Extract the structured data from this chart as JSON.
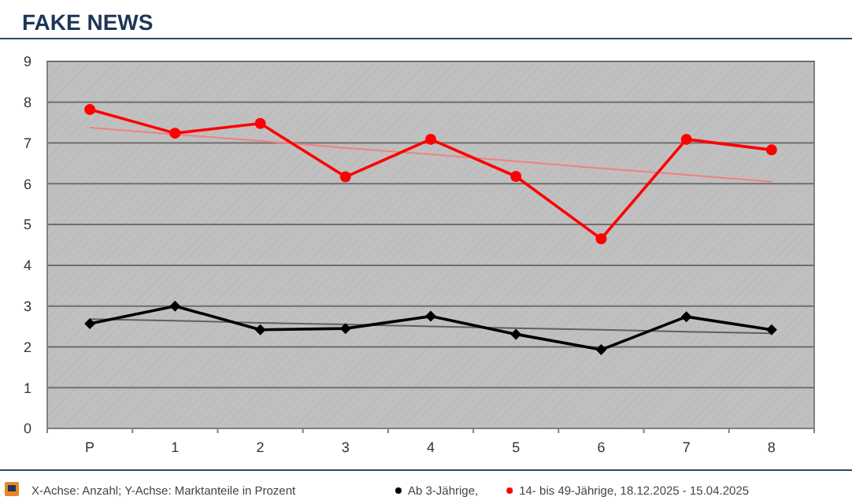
{
  "chart_data": {
    "type": "line",
    "title": "FAKE NEWS",
    "annotations": [
      "X-Achse: Anzahl; Y-Achse: Marktanteile in Prozent"
    ],
    "categories": [
      "P",
      "1",
      "2",
      "3",
      "4",
      "5",
      "6",
      "7",
      "8"
    ],
    "series": [
      {
        "name": "Ab 3-Jährige,",
        "color": "#000000",
        "marker": "diamond",
        "values": [
          2.57,
          3.0,
          2.42,
          2.45,
          2.75,
          2.31,
          1.93,
          2.74,
          2.42
        ]
      },
      {
        "name": "14- bis 49-Jährige, 18.12.2025 - 15.04.2025",
        "color": "#ff0000",
        "marker": "circle",
        "values": [
          7.82,
          7.24,
          7.48,
          6.17,
          7.09,
          6.18,
          4.65,
          7.09,
          6.83
        ]
      },
      {
        "color": "#606060",
        "marker": "none",
        "values": [
          2.68,
          2.64,
          2.59,
          2.55,
          2.5,
          2.46,
          2.42,
          2.37,
          2.33
        ]
      },
      {
        "color": "#f08080",
        "marker": "none",
        "values": [
          7.38,
          7.21,
          7.05,
          6.88,
          6.72,
          6.55,
          6.38,
          6.22,
          6.05
        ]
      }
    ],
    "ylim": [
      0,
      9
    ],
    "yticks": [
      0,
      1,
      2,
      3,
      4,
      5,
      6,
      7,
      8,
      9
    ],
    "grid": "y",
    "legend": "bottom"
  }
}
